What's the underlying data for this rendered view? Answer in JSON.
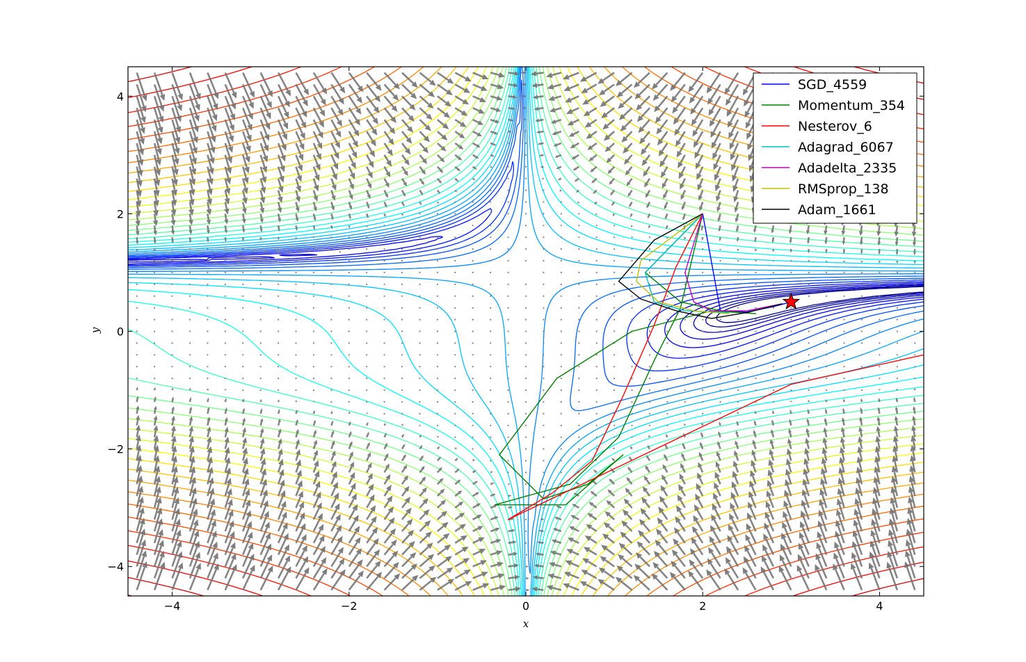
{
  "chart_data": {
    "type": "line",
    "title": "",
    "xlabel": "x",
    "ylabel": "y",
    "xlim": [
      -4.5,
      4.5
    ],
    "ylim": [
      -4.5,
      4.5
    ],
    "xticks": [
      {
        "v": -4,
        "label": "−4"
      },
      {
        "v": -2,
        "label": "−2"
      },
      {
        "v": 0,
        "label": "0"
      },
      {
        "v": 2,
        "label": "2"
      },
      {
        "v": 4,
        "label": "4"
      }
    ],
    "yticks": [
      {
        "v": -4,
        "label": "−4"
      },
      {
        "v": -2,
        "label": "−2"
      },
      {
        "v": 0,
        "label": "0"
      },
      {
        "v": 2,
        "label": "2"
      },
      {
        "v": 4,
        "label": "4"
      }
    ],
    "background": "Beale function contour map with gradient quiver field",
    "legend_position": "upper right",
    "minimum": {
      "x": 3.0,
      "y": 0.5,
      "marker": "star",
      "color": "#ff0000"
    },
    "series": [
      {
        "name": "SGD_4559",
        "color": "#0000ff",
        "x": [
          2.0,
          2.2,
          2.5,
          2.8,
          3.0
        ],
        "y": [
          2.0,
          0.35,
          0.33,
          0.42,
          0.5
        ]
      },
      {
        "name": "Momentum_354",
        "color": "#008000",
        "x": [
          2.0,
          1.35,
          1.75,
          2.2,
          2.6,
          2.1,
          1.2,
          0.35,
          -0.3,
          0.2,
          0.7,
          1.1,
          0.45,
          -0.35,
          0.5,
          1.05,
          1.45,
          1.75,
          2.0
        ],
        "y": [
          2.0,
          1.0,
          0.5,
          0.35,
          0.3,
          0.35,
          0.0,
          -0.8,
          -2.1,
          -2.85,
          -2.6,
          -2.1,
          -2.95,
          -2.95,
          -2.6,
          -1.8,
          -0.5,
          0.4,
          2.0
        ]
      },
      {
        "name": "Nesterov_6",
        "color": "#ff0000",
        "x": [
          2.0,
          1.7,
          1.45,
          1.1,
          0.75,
          0.3,
          -0.2,
          3.0,
          4.5
        ],
        "y": [
          2.0,
          1.1,
          0.1,
          -1.1,
          -2.2,
          -2.75,
          -3.2,
          -0.9,
          -0.4
        ]
      },
      {
        "name": "Adagrad_6067",
        "color": "#00bfbf",
        "x": [
          2.0,
          1.35,
          1.45,
          1.8,
          2.3
        ],
        "y": [
          2.0,
          1.0,
          0.5,
          0.35,
          0.32
        ]
      },
      {
        "name": "Adadelta_2335",
        "color": "#bf00bf",
        "x": [
          2.0,
          1.8,
          1.9,
          2.1,
          2.5,
          2.9
        ],
        "y": [
          2.0,
          1.0,
          0.5,
          0.35,
          0.35,
          0.47
        ]
      },
      {
        "name": "RMSprop_138",
        "color": "#bfbf00",
        "x": [
          2.0,
          1.3,
          1.25,
          1.5,
          1.9,
          2.3
        ],
        "y": [
          2.0,
          1.2,
          0.85,
          0.5,
          0.35,
          0.3
        ]
      },
      {
        "name": "Adam_1661",
        "color": "#000000",
        "x": [
          2.0,
          1.45,
          1.05,
          1.3,
          1.7,
          2.1,
          2.5,
          2.9
        ],
        "y": [
          2.0,
          1.55,
          0.85,
          0.55,
          0.35,
          0.22,
          0.32,
          0.47
        ]
      }
    ]
  }
}
